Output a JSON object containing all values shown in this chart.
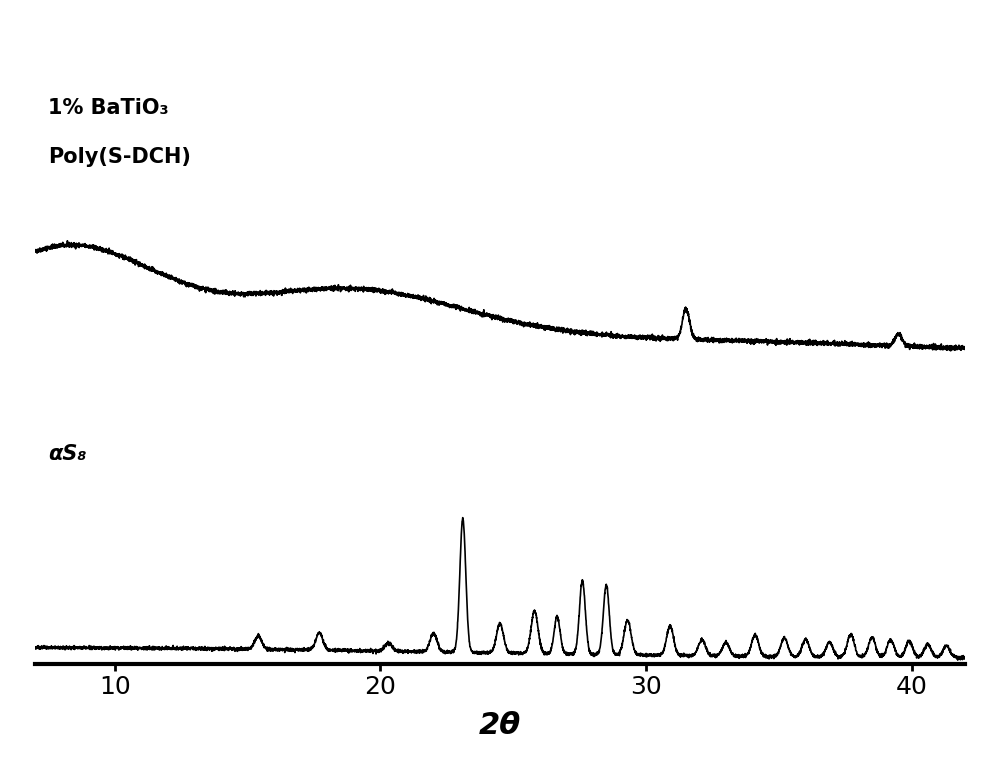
{
  "title": "",
  "xlabel": "2θ",
  "xlabel_fontsize": 22,
  "xlabel_style": "italic",
  "xlim": [
    7,
    42
  ],
  "xticks": [
    10,
    20,
    30,
    40
  ],
  "background_color": "#ffffff",
  "line_color": "#000000",
  "label1": "1% BaTiO₃",
  "label2": "Poly(S-DCH)",
  "label3": "αS₈",
  "label1_fontsize": 15,
  "label2_fontsize": 15,
  "label3_fontsize": 15,
  "tick_fontsize": 18,
  "noise_seed": 42,
  "figsize": [
    10.0,
    7.7
  ],
  "dpi": 100,
  "upper_baseline": 3.2,
  "lower_baseline": 0.5,
  "upper_scale": 2.2,
  "lower_scale": 1.6
}
